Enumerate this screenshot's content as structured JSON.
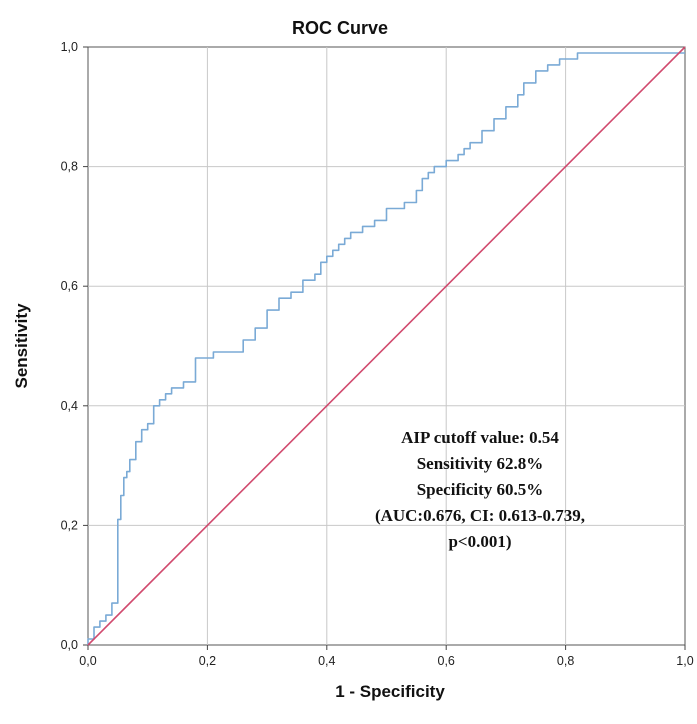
{
  "chart_data": {
    "type": "line",
    "title": "ROC Curve",
    "xlabel": "1 - Specificity",
    "ylabel": "Sensitivity",
    "xlim": [
      0,
      1
    ],
    "ylim": [
      0,
      1
    ],
    "x_ticks": [
      "0,0",
      "0,2",
      "0,4",
      "0,6",
      "0,8",
      "1,0"
    ],
    "y_ticks": [
      "0,0",
      "0,2",
      "0,4",
      "0,6",
      "0,8",
      "1,0"
    ],
    "grid": true,
    "series": [
      {
        "color": "#7aaad6",
        "x": [
          0.0,
          0.0,
          0.01,
          0.01,
          0.02,
          0.02,
          0.03,
          0.03,
          0.04,
          0.04,
          0.05,
          0.05,
          0.055,
          0.055,
          0.06,
          0.06,
          0.065,
          0.065,
          0.07,
          0.07,
          0.08,
          0.08,
          0.09,
          0.09,
          0.1,
          0.1,
          0.11,
          0.11,
          0.12,
          0.12,
          0.13,
          0.13,
          0.14,
          0.14,
          0.16,
          0.16,
          0.18,
          0.18,
          0.21,
          0.21,
          0.26,
          0.26,
          0.28,
          0.28,
          0.3,
          0.3,
          0.32,
          0.32,
          0.34,
          0.34,
          0.36,
          0.36,
          0.38,
          0.38,
          0.39,
          0.39,
          0.4,
          0.4,
          0.41,
          0.41,
          0.42,
          0.42,
          0.43,
          0.43,
          0.44,
          0.44,
          0.46,
          0.46,
          0.48,
          0.48,
          0.5,
          0.5,
          0.53,
          0.53,
          0.55,
          0.55,
          0.56,
          0.56,
          0.57,
          0.57,
          0.58,
          0.58,
          0.6,
          0.6,
          0.62,
          0.62,
          0.63,
          0.63,
          0.64,
          0.64,
          0.66,
          0.66,
          0.68,
          0.68,
          0.7,
          0.7,
          0.72,
          0.72,
          0.73,
          0.73,
          0.75,
          0.75,
          0.77,
          0.77,
          0.79,
          0.79,
          0.82,
          0.82,
          0.84,
          1.0
        ],
        "y": [
          0.0,
          0.01,
          0.01,
          0.03,
          0.03,
          0.04,
          0.04,
          0.05,
          0.05,
          0.07,
          0.07,
          0.21,
          0.21,
          0.25,
          0.25,
          0.28,
          0.28,
          0.29,
          0.29,
          0.31,
          0.31,
          0.34,
          0.34,
          0.36,
          0.36,
          0.37,
          0.37,
          0.4,
          0.4,
          0.41,
          0.41,
          0.42,
          0.42,
          0.43,
          0.43,
          0.44,
          0.44,
          0.48,
          0.48,
          0.49,
          0.49,
          0.51,
          0.51,
          0.53,
          0.53,
          0.56,
          0.56,
          0.58,
          0.58,
          0.59,
          0.59,
          0.61,
          0.61,
          0.62,
          0.62,
          0.64,
          0.64,
          0.65,
          0.65,
          0.66,
          0.66,
          0.67,
          0.67,
          0.68,
          0.68,
          0.69,
          0.69,
          0.7,
          0.7,
          0.71,
          0.71,
          0.73,
          0.73,
          0.74,
          0.74,
          0.76,
          0.76,
          0.78,
          0.78,
          0.79,
          0.79,
          0.8,
          0.8,
          0.81,
          0.81,
          0.82,
          0.82,
          0.83,
          0.83,
          0.84,
          0.84,
          0.86,
          0.86,
          0.88,
          0.88,
          0.9,
          0.9,
          0.92,
          0.92,
          0.94,
          0.94,
          0.96,
          0.96,
          0.97,
          0.97,
          0.98,
          0.98,
          0.99,
          0.99,
          0.99
        ]
      },
      {
        "color": "#d14a6e",
        "x": [
          0.0,
          1.0
        ],
        "y": [
          0.0,
          1.0
        ]
      }
    ],
    "annotation": [
      "AIP cutoff value: 0.54",
      "Sensitivity 62.8%",
      "Specificity 60.5%",
      "(AUC:0.676, CI: 0.613-0.739,",
      "p<0.001)"
    ]
  }
}
